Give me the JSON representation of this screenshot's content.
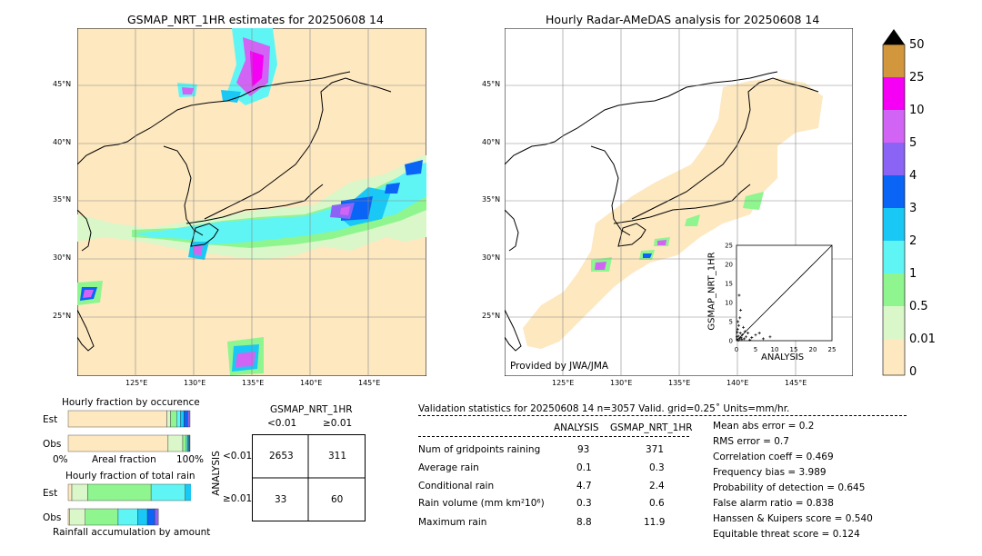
{
  "colors": {
    "land_beige": "#fde8c0",
    "c001": "#fde8c0",
    "c05": "#d9f7c8",
    "c1": "#8ff58f",
    "c2": "#5ff5f5",
    "c3": "#19c8f5",
    "c4": "#0a64f5",
    "c5": "#8c64f5",
    "c10": "#d264f5",
    "c25": "#f500f5",
    "c50": "#d2963c"
  },
  "left_map": {
    "title": "GSMAP_NRT_1HR estimates for 20250608 14",
    "lat_labels": [
      "45°N",
      "40°N",
      "35°N",
      "30°N",
      "25°N"
    ],
    "lon_labels": [
      "125°E",
      "130°E",
      "135°E",
      "140°E",
      "145°E"
    ]
  },
  "right_map": {
    "title": "Hourly Radar-AMeDAS analysis for 20250608 14",
    "lat_labels": [
      "45°N",
      "40°N",
      "35°N",
      "30°N",
      "25°N"
    ],
    "lon_labels": [
      "125°E",
      "130°E",
      "135°E",
      "140°E",
      "145°E"
    ],
    "credit": "Provided by JWA/JMA"
  },
  "scatter_inset": {
    "xlabel": "ANALYSIS",
    "ylabel": "GSMAP_NRT_1HR",
    "ticks": [
      "0",
      "5",
      "10",
      "15",
      "20",
      "25"
    ]
  },
  "colorbar": {
    "labels": [
      "50",
      "25",
      "10",
      "5",
      "4",
      "3",
      "2",
      "1",
      "0.5",
      "0.01",
      "0"
    ]
  },
  "fraction_occurrence": {
    "title": "Hourly fraction by occurence",
    "row_est": "Est",
    "row_obs": "Obs",
    "axis_left": "0%",
    "axis_mid": "Areal fraction",
    "axis_right": "100%"
  },
  "fraction_total": {
    "title": "Hourly fraction of total rain",
    "row_est": "Est",
    "row_obs": "Obs",
    "axis_label": "Rainfall accumulation by amount"
  },
  "contingency": {
    "title": "GSMAP_NRT_1HR",
    "col_lt": "<0.01",
    "col_ge": "≥0.01",
    "row_axis": "ANALYSIS",
    "row_lt": "<0.01",
    "row_ge": "≥0.01",
    "cells": [
      "2653",
      "311",
      "33",
      "60"
    ]
  },
  "validation": {
    "header": "Validation statistics for 20250608 14  n=3057 Valid. grid=0.25˚ Units=mm/hr.",
    "col_analysis": "ANALYSIS",
    "col_gsmap": "GSMAP_NRT_1HR",
    "rows": [
      {
        "label": "Num of gridpoints raining",
        "analysis": "93",
        "gsmap": "371"
      },
      {
        "label": "Average rain",
        "analysis": "0.1",
        "gsmap": "0.3"
      },
      {
        "label": "Conditional rain",
        "analysis": "4.7",
        "gsmap": "2.4"
      },
      {
        "label": "Rain volume (mm km²10⁶)",
        "analysis": "0.3",
        "gsmap": "0.6"
      },
      {
        "label": "Maximum rain",
        "analysis": "8.8",
        "gsmap": "11.9"
      }
    ],
    "scores": [
      "Mean abs error =    0.2",
      "RMS error =    0.7",
      "Correlation coeff =  0.469",
      "Frequency bias =  3.989",
      "Probability of detection =  0.645",
      "False alarm ratio =  0.838",
      "Hanssen & Kuipers score =  0.540",
      "Equitable threat score =  0.124"
    ]
  },
  "chart_data": [
    {
      "type": "scatter",
      "xlabel": "ANALYSIS",
      "ylabel": "GSMAP_NRT_1HR",
      "xlim": [
        0,
        25
      ],
      "ylim": [
        0,
        25
      ],
      "points": [
        [
          0.2,
          0.3
        ],
        [
          0.5,
          1.2
        ],
        [
          0.8,
          0.5
        ],
        [
          1,
          2
        ],
        [
          1.2,
          0.8
        ],
        [
          0.3,
          3
        ],
        [
          0.6,
          4
        ],
        [
          1.5,
          1.5
        ],
        [
          2,
          0.5
        ],
        [
          0.4,
          5
        ],
        [
          0.9,
          6
        ],
        [
          1.1,
          8
        ],
        [
          0.7,
          11.9
        ],
        [
          2.5,
          1
        ],
        [
          3,
          2
        ],
        [
          4,
          0.8
        ],
        [
          5,
          1.5
        ],
        [
          8.8,
          1
        ],
        [
          7,
          0.5
        ],
        [
          6,
          2
        ],
        [
          1.8,
          3.5
        ],
        [
          0.2,
          2.2
        ],
        [
          1.4,
          0.3
        ],
        [
          2.2,
          2.4
        ],
        [
          0.5,
          0.1
        ],
        [
          3.5,
          0.2
        ],
        [
          0.1,
          1
        ]
      ]
    },
    {
      "type": "bar",
      "title": "Hourly fraction by occurence",
      "series": [
        {
          "name": "Est",
          "values": [
            0.81,
            0.03,
            0.05,
            0.03,
            0.03,
            0.03,
            0.02
          ]
        },
        {
          "name": "Obs",
          "values": [
            0.82,
            0.12,
            0.03,
            0.01,
            0.01,
            0.005,
            0.005
          ]
        }
      ]
    },
    {
      "type": "bar",
      "title": "Hourly fraction of total rain",
      "series": [
        {
          "name": "Est",
          "values": [
            0.03,
            0.13,
            0.52,
            0.28,
            0.05,
            0.04,
            0.02
          ]
        },
        {
          "name": "Obs",
          "values": [
            0.01,
            0.13,
            0.27,
            0.16,
            0.08,
            0.06,
            0.03
          ]
        }
      ]
    }
  ]
}
